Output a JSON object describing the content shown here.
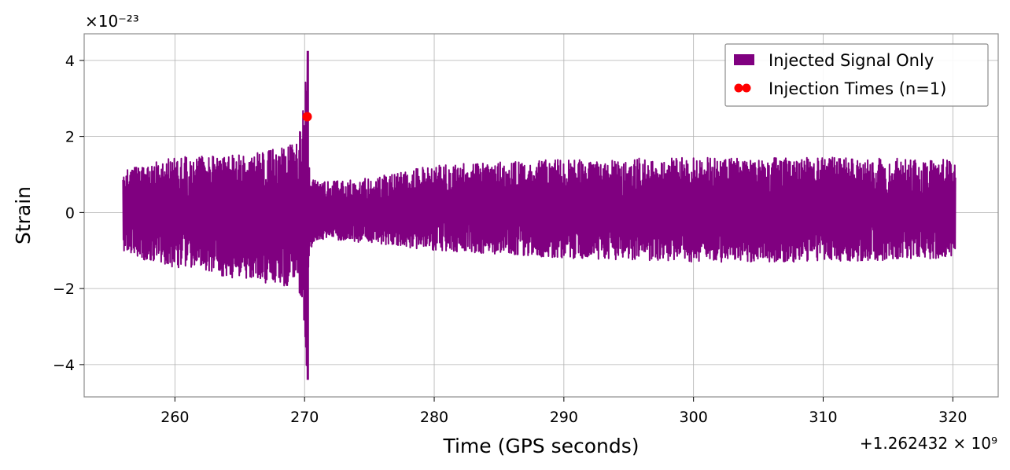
{
  "chart_data": {
    "type": "line",
    "title": "",
    "xlabel": "Time (GPS seconds)",
    "ylabel": "Strain",
    "x_offset_label": "+1.262432 × 10⁹",
    "y_multiplier_label": "×10⁻²³",
    "xlim": [
      253,
      323.5
    ],
    "ylim": [
      -4.85,
      4.7
    ],
    "x_ticks": [
      260,
      270,
      280,
      290,
      300,
      310,
      320
    ],
    "x_tick_labels": [
      "260",
      "270",
      "280",
      "290",
      "300",
      "310",
      "320"
    ],
    "y_ticks": [
      -4,
      -2,
      0,
      2,
      4
    ],
    "y_tick_labels": [
      "−4",
      "−2",
      "0",
      "2",
      "4"
    ],
    "grid": true,
    "legend_position": "top-right",
    "series": [
      {
        "name": "Injected Signal Only",
        "kind": "line",
        "color": "#800080",
        "x_start": 256,
        "x_end": 320.2,
        "envelope_x": [
          256,
          258,
          260,
          262,
          264,
          266,
          268,
          269.5,
          270.0,
          270.2,
          270.4,
          271,
          275,
          280,
          290,
          300,
          310,
          320.2
        ],
        "envelope_upper": [
          1.1,
          1.3,
          1.45,
          1.5,
          1.5,
          1.55,
          1.7,
          1.9,
          3.0,
          4.25,
          1.0,
          0.8,
          0.9,
          1.25,
          1.4,
          1.45,
          1.45,
          1.4
        ],
        "envelope_lower": [
          -1.0,
          -1.3,
          -1.45,
          -1.5,
          -1.7,
          -1.8,
          -1.9,
          -2.0,
          -3.0,
          -4.4,
          -1.0,
          -0.7,
          -0.8,
          -1.0,
          -1.2,
          -1.3,
          -1.3,
          -1.2
        ]
      },
      {
        "name": "Injection Times (n=1)",
        "kind": "scatter",
        "color": "#ff0000",
        "points": [
          {
            "x": 270.2,
            "y": 2.52
          }
        ]
      }
    ]
  }
}
